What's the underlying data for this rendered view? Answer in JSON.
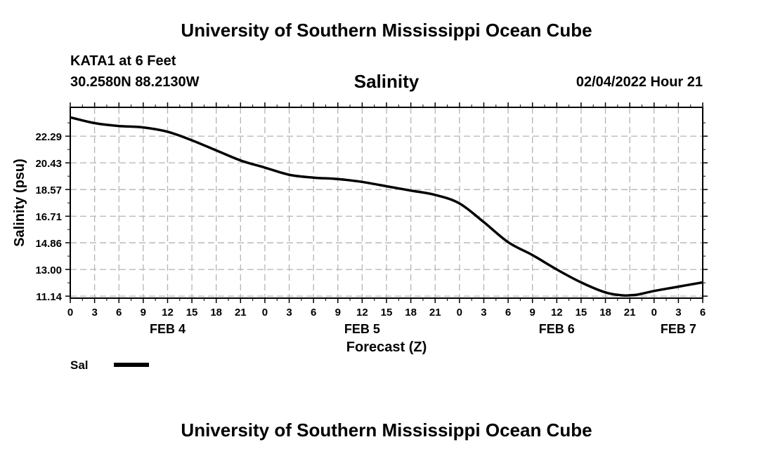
{
  "header": {
    "top_title": "University of Southern Mississippi Ocean Cube",
    "station": "KATA1 at 6 Feet",
    "coords": "30.2580N  88.2130W",
    "datetime": "02/04/2022 Hour 21",
    "bottom_title": "University of Southern Mississippi Ocean Cube"
  },
  "chart_data": {
    "type": "line",
    "title": "Salinity",
    "xlabel": "Forecast (Z)",
    "ylabel": "Salinity (psu)",
    "xlim": [
      0,
      78
    ],
    "ylim": [
      11.0,
      24.3
    ],
    "y_ticks": [
      "11.14",
      "13.00",
      "14.86",
      "16.71",
      "18.57",
      "20.43",
      "22.29"
    ],
    "x_tick_labels": [
      "0",
      "3",
      "6",
      "9",
      "12",
      "15",
      "18",
      "21",
      "0",
      "3",
      "6",
      "9",
      "12",
      "15",
      "18",
      "21",
      "0",
      "3",
      "6",
      "9",
      "12",
      "15",
      "18",
      "21",
      "0",
      "3",
      "6"
    ],
    "day_labels": [
      {
        "label": "FEB 4",
        "x": 12
      },
      {
        "label": "FEB 5",
        "x": 36
      },
      {
        "label": "FEB 6",
        "x": 60
      },
      {
        "label": "FEB 7",
        "x": 75
      }
    ],
    "grid": true,
    "legend": {
      "placement": "bottom-left",
      "color": "#000000"
    },
    "series": [
      {
        "name": "Sal",
        "x": [
          0,
          3,
          6,
          9,
          12,
          15,
          18,
          21,
          24,
          27,
          30,
          33,
          36,
          39,
          42,
          45,
          48,
          51,
          54,
          57,
          60,
          63,
          66,
          68,
          69,
          70,
          72,
          75,
          78
        ],
        "y": [
          23.6,
          23.2,
          23.0,
          22.9,
          22.6,
          22.0,
          21.3,
          20.6,
          20.1,
          19.6,
          19.4,
          19.3,
          19.1,
          18.8,
          18.5,
          18.2,
          17.6,
          16.3,
          14.9,
          14.0,
          13.0,
          12.1,
          11.4,
          11.2,
          11.2,
          11.25,
          11.5,
          11.8,
          12.1
        ]
      }
    ]
  }
}
